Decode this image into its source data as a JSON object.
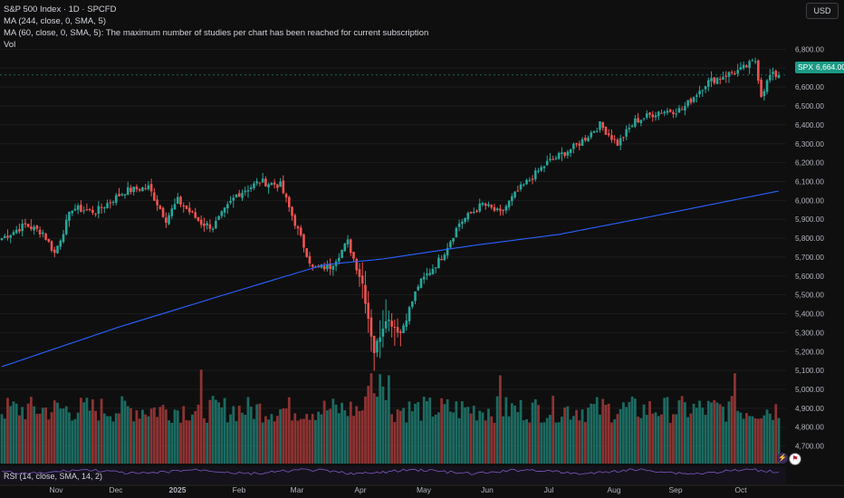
{
  "legend": {
    "line1": "S&P 500 Index · 1D · SPCFD",
    "line2": "MA (244, close, 0, SMA, 5)",
    "line3": "MA (60, close, 0, SMA, 5): The maximum number of studies per chart has been reached for current subscription",
    "line4": "Vol"
  },
  "currency_button": "USD",
  "rsi_label": "RSI (14, close, SMA, 14, 2)",
  "ticker_badge": "SPX",
  "price_badge": "6,664.00",
  "icons": {
    "flash": "lightning-icon",
    "flag": "us-flag-icon"
  },
  "colors": {
    "up": "#26a69a",
    "down": "#ef5350",
    "ma": "#2962ff",
    "volume_up": "#1e7a70",
    "volume_down": "#a33a38",
    "background": "#0f0f0f"
  },
  "chart_data": {
    "type": "candlestick",
    "title": "S&P 500 Index · 1D · SPCFD",
    "y_tick_labels": [
      "6,800.00",
      "6,700.00",
      "6,600.00",
      "6,500.00",
      "6,400.00",
      "6,300.00",
      "6,200.00",
      "6,100.00",
      "6,000.00",
      "5,900.00",
      "5,800.00",
      "5,700.00",
      "5,600.00",
      "5,500.00",
      "5,400.00",
      "5,300.00",
      "5,200.00",
      "5,100.00",
      "5,000.00",
      "4,900.00",
      "4,800.00",
      "4,700.00"
    ],
    "y_ticks": [
      6800,
      6700,
      6600,
      6500,
      6400,
      6300,
      6200,
      6100,
      6000,
      5900,
      5800,
      5700,
      5600,
      5500,
      5400,
      5300,
      5200,
      5100,
      5000,
      4900,
      4800,
      4700
    ],
    "x_tick_labels": [
      "Nov",
      "Dec",
      "2025",
      "Feb",
      "Mar",
      "Apr",
      "May",
      "Jun",
      "Jul",
      "Aug",
      "Sep",
      "Oct"
    ],
    "ylim": [
      4650,
      6850
    ],
    "last_price": 6664,
    "closes_anchor": [
      {
        "i": 0,
        "v": 5800
      },
      {
        "i": 8,
        "v": 5870
      },
      {
        "i": 14,
        "v": 5830
      },
      {
        "i": 18,
        "v": 5720
      },
      {
        "i": 24,
        "v": 5960
      },
      {
        "i": 32,
        "v": 5940
      },
      {
        "i": 42,
        "v": 6050
      },
      {
        "i": 50,
        "v": 6070
      },
      {
        "i": 56,
        "v": 5900
      },
      {
        "i": 60,
        "v": 6000
      },
      {
        "i": 68,
        "v": 5880
      },
      {
        "i": 72,
        "v": 5860
      },
      {
        "i": 80,
        "v": 6030
      },
      {
        "i": 88,
        "v": 6100
      },
      {
        "i": 95,
        "v": 6080
      },
      {
        "i": 100,
        "v": 5880
      },
      {
        "i": 106,
        "v": 5640
      },
      {
        "i": 112,
        "v": 5650
      },
      {
        "i": 118,
        "v": 5780
      },
      {
        "i": 123,
        "v": 5560
      },
      {
        "i": 127,
        "v": 5200
      },
      {
        "i": 131,
        "v": 5380
      },
      {
        "i": 136,
        "v": 5300
      },
      {
        "i": 142,
        "v": 5550
      },
      {
        "i": 150,
        "v": 5700
      },
      {
        "i": 156,
        "v": 5880
      },
      {
        "i": 164,
        "v": 5980
      },
      {
        "i": 170,
        "v": 5930
      },
      {
        "i": 176,
        "v": 6050
      },
      {
        "i": 186,
        "v": 6200
      },
      {
        "i": 196,
        "v": 6290
      },
      {
        "i": 204,
        "v": 6400
      },
      {
        "i": 210,
        "v": 6300
      },
      {
        "i": 216,
        "v": 6420
      },
      {
        "i": 224,
        "v": 6470
      },
      {
        "i": 232,
        "v": 6480
      },
      {
        "i": 240,
        "v": 6620
      },
      {
        "i": 246,
        "v": 6660
      },
      {
        "i": 252,
        "v": 6690
      },
      {
        "i": 257,
        "v": 6740
      },
      {
        "i": 259,
        "v": 6560
      },
      {
        "i": 262,
        "v": 6660
      },
      {
        "i": 265,
        "v": 6664
      }
    ],
    "ma244_anchor": [
      {
        "i": 0,
        "v": 5120
      },
      {
        "i": 40,
        "v": 5330
      },
      {
        "i": 80,
        "v": 5520
      },
      {
        "i": 110,
        "v": 5660
      },
      {
        "i": 130,
        "v": 5690
      },
      {
        "i": 160,
        "v": 5760
      },
      {
        "i": 190,
        "v": 5820
      },
      {
        "i": 220,
        "v": 5910
      },
      {
        "i": 265,
        "v": 6050
      }
    ],
    "series": [
      {
        "name": "MA (244, close, 0, SMA, 5)"
      },
      {
        "name": "Vol"
      }
    ]
  }
}
